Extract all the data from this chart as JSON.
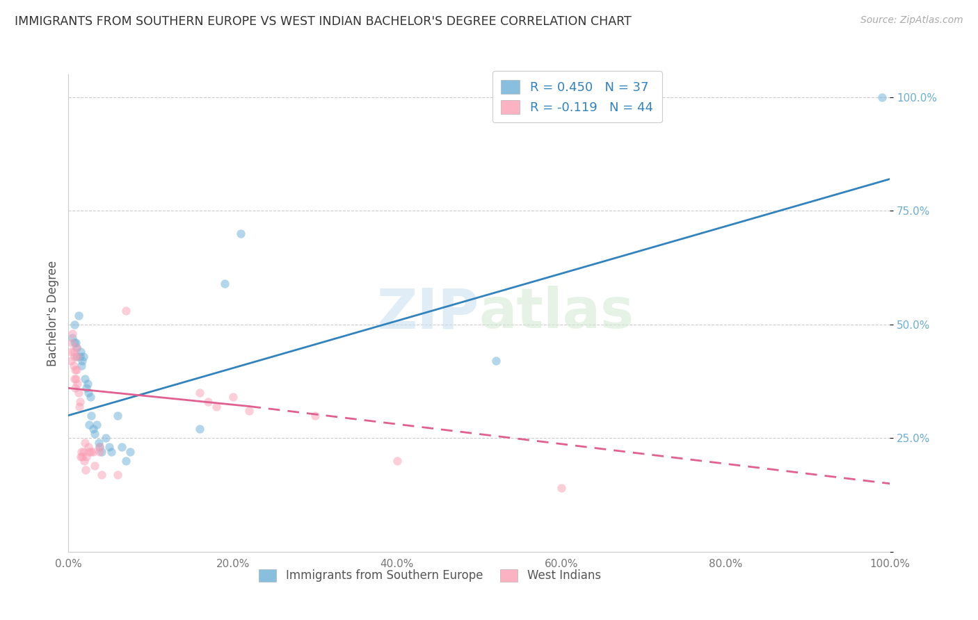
{
  "title": "IMMIGRANTS FROM SOUTHERN EUROPE VS WEST INDIAN BACHELOR'S DEGREE CORRELATION CHART",
  "source": "Source: ZipAtlas.com",
  "ylabel": "Bachelor's Degree",
  "legend1_label": "R = 0.450   N = 37",
  "legend2_label": "R = -0.119   N = 44",
  "watermark": "ZIPatlas",
  "blue_scatter": [
    [
      0.5,
      47
    ],
    [
      0.7,
      46
    ],
    [
      0.7,
      50
    ],
    [
      0.9,
      46
    ],
    [
      1.0,
      43
    ],
    [
      1.0,
      45
    ],
    [
      1.2,
      52
    ],
    [
      1.4,
      43
    ],
    [
      1.5,
      44
    ],
    [
      1.6,
      41
    ],
    [
      1.7,
      42
    ],
    [
      1.8,
      43
    ],
    [
      2.0,
      38
    ],
    [
      2.2,
      36
    ],
    [
      2.3,
      37
    ],
    [
      2.4,
      35
    ],
    [
      2.5,
      28
    ],
    [
      2.7,
      34
    ],
    [
      2.8,
      30
    ],
    [
      3.0,
      27
    ],
    [
      3.2,
      26
    ],
    [
      3.4,
      28
    ],
    [
      3.7,
      24
    ],
    [
      3.8,
      23
    ],
    [
      4.0,
      22
    ],
    [
      4.5,
      25
    ],
    [
      5.0,
      23
    ],
    [
      5.2,
      22
    ],
    [
      6.0,
      30
    ],
    [
      6.5,
      23
    ],
    [
      7.0,
      20
    ],
    [
      7.5,
      22
    ],
    [
      16.0,
      27
    ],
    [
      19.0,
      59
    ],
    [
      21.0,
      70
    ],
    [
      52.0,
      42
    ],
    [
      99.0,
      100
    ]
  ],
  "pink_scatter": [
    [
      0.3,
      44
    ],
    [
      0.3,
      42
    ],
    [
      0.4,
      46
    ],
    [
      0.5,
      48
    ],
    [
      0.6,
      44
    ],
    [
      0.6,
      41
    ],
    [
      0.7,
      43
    ],
    [
      0.7,
      38
    ],
    [
      0.8,
      40
    ],
    [
      0.8,
      36
    ],
    [
      0.9,
      38
    ],
    [
      1.0,
      45
    ],
    [
      1.0,
      40
    ],
    [
      1.1,
      43
    ],
    [
      1.1,
      37
    ],
    [
      1.2,
      35
    ],
    [
      1.3,
      32
    ],
    [
      1.4,
      33
    ],
    [
      1.5,
      21
    ],
    [
      1.6,
      22
    ],
    [
      1.7,
      21
    ],
    [
      1.8,
      22
    ],
    [
      1.9,
      20
    ],
    [
      2.0,
      24
    ],
    [
      2.1,
      18
    ],
    [
      2.2,
      21
    ],
    [
      2.4,
      23
    ],
    [
      2.5,
      22
    ],
    [
      2.8,
      22
    ],
    [
      3.0,
      22
    ],
    [
      3.2,
      19
    ],
    [
      3.8,
      23
    ],
    [
      3.8,
      22
    ],
    [
      4.0,
      17
    ],
    [
      6.0,
      17
    ],
    [
      7.0,
      53
    ],
    [
      16.0,
      35
    ],
    [
      17.0,
      33
    ],
    [
      18.0,
      32
    ],
    [
      20.0,
      34
    ],
    [
      22.0,
      31
    ],
    [
      30.0,
      30
    ],
    [
      40.0,
      20
    ],
    [
      60.0,
      14
    ]
  ],
  "blue_line": [
    [
      0,
      30
    ],
    [
      100,
      82
    ]
  ],
  "pink_line_solid": [
    [
      0,
      36
    ],
    [
      22,
      32
    ]
  ],
  "pink_line_dashed": [
    [
      22,
      32
    ],
    [
      100,
      15
    ]
  ],
  "scatter_size": 80,
  "scatter_alpha": 0.5,
  "blue_color": "#6baed6",
  "pink_color": "#fa9fb5",
  "blue_line_color": "#3182bd",
  "pink_line_color": "#e06090",
  "background_color": "#ffffff",
  "grid_color": "#cccccc",
  "xlim": [
    0,
    100
  ],
  "ylim": [
    0,
    105
  ],
  "xticks": [
    0,
    20,
    40,
    60,
    80,
    100
  ],
  "xtick_labels": [
    "0.0%",
    "20.0%",
    "40.0%",
    "60.0%",
    "80.0%",
    "100.0%"
  ],
  "yticks": [
    0,
    25,
    50,
    75,
    100
  ],
  "ytick_labels": [
    "",
    "25.0%",
    "50.0%",
    "75.0%",
    "100.0%"
  ]
}
